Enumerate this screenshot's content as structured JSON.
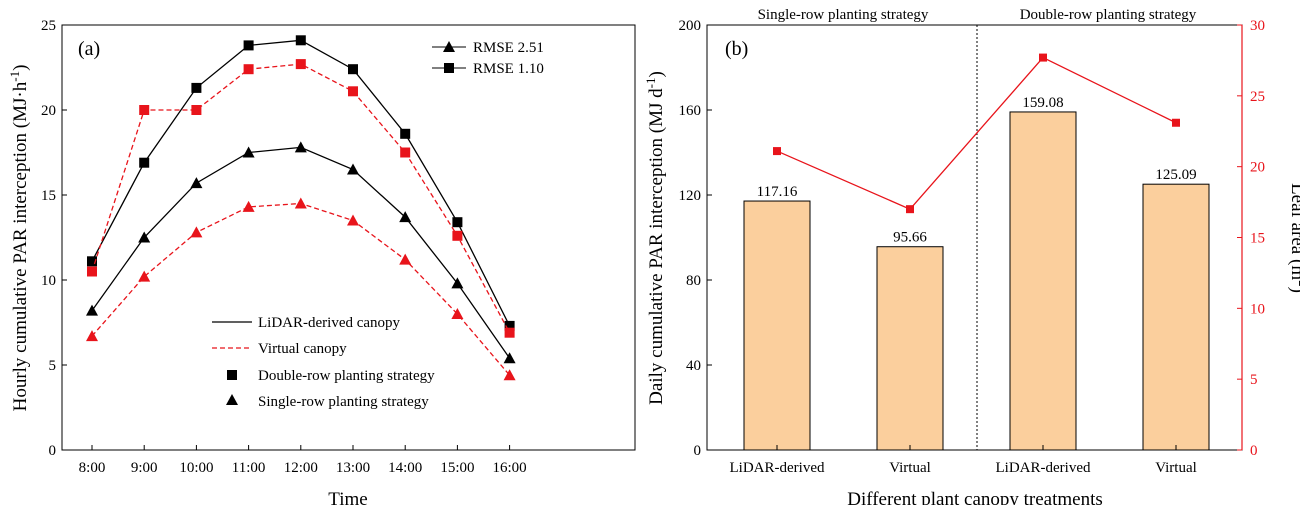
{
  "chart_data": [
    {
      "type": "line",
      "panel_label": "(a)",
      "title": "",
      "xlabel": "Time",
      "ylabel": "Hourly cumulative PAR interception (MJ·h⁻¹)",
      "ylim": [
        0,
        25
      ],
      "yticks": [
        "0",
        "5",
        "10",
        "15",
        "20",
        "25"
      ],
      "categories": [
        "8:00",
        "9:00",
        "10:00",
        "11:00",
        "12:00",
        "13:00",
        "14:00",
        "15:00",
        "16:00"
      ],
      "series": [
        {
          "name": "Double-row LiDAR-derived",
          "style": "solid",
          "marker": "square",
          "color": "#000000",
          "values": [
            11.1,
            16.9,
            21.3,
            23.8,
            24.1,
            22.4,
            18.6,
            13.4,
            7.3
          ]
        },
        {
          "name": "Double-row Virtual",
          "style": "dashed",
          "marker": "square",
          "color": "#e8141b",
          "values": [
            10.5,
            20.0,
            20.0,
            22.4,
            22.7,
            21.1,
            17.5,
            12.6,
            6.9
          ]
        },
        {
          "name": "Single-row LiDAR-derived",
          "style": "solid",
          "marker": "triangle",
          "color": "#000000",
          "values": [
            8.2,
            12.5,
            15.7,
            17.5,
            17.8,
            16.5,
            13.7,
            9.8,
            5.4
          ]
        },
        {
          "name": "Single-row Virtual",
          "style": "dashed",
          "marker": "triangle",
          "color": "#e8141b",
          "values": [
            6.7,
            10.2,
            12.8,
            14.3,
            14.5,
            13.5,
            11.2,
            8.0,
            4.4
          ]
        }
      ],
      "rmse_legend": [
        {
          "marker": "triangle",
          "label": "RMSE  2.51"
        },
        {
          "marker": "square",
          "label": "RMSE  1.10"
        }
      ],
      "legend": [
        {
          "symbol": "solid-line",
          "label": "LiDAR-derived canopy"
        },
        {
          "symbol": "dashed-line",
          "label": "Virtual canopy"
        },
        {
          "symbol": "square",
          "label": "Double-row planting strategy"
        },
        {
          "symbol": "triangle",
          "label": "Single-row planting strategy"
        }
      ]
    },
    {
      "type": "bar",
      "panel_label": "(b)",
      "title": "",
      "xlabel": "Different plant canopy treatments",
      "ylabel": "Daily cumulative PAR interception (MJ d⁻¹)",
      "y2label": "Leaf area (m²)",
      "ylim": [
        0,
        200
      ],
      "y2lim": [
        0,
        30
      ],
      "yticks": [
        "0",
        "40",
        "80",
        "120",
        "160",
        "200"
      ],
      "y2ticks": [
        "0",
        "5",
        "10",
        "15",
        "20",
        "25",
        "30"
      ],
      "categories": [
        "LiDAR-derived",
        "Virtual",
        "LiDAR-derived",
        "Virtual"
      ],
      "groups": [
        "Single-row planting strategy",
        "Double-row planting strategy"
      ],
      "bars": {
        "values": [
          117.16,
          95.66,
          159.08,
          125.09
        ],
        "labels": [
          "117.16",
          "95.66",
          "159.08",
          "125.09"
        ],
        "color": "#fbcf9d"
      },
      "leaf_area": {
        "values": [
          21.1,
          17.0,
          27.7,
          23.1
        ],
        "color": "#e8141b"
      },
      "axis2_color": "#e8141b"
    }
  ]
}
